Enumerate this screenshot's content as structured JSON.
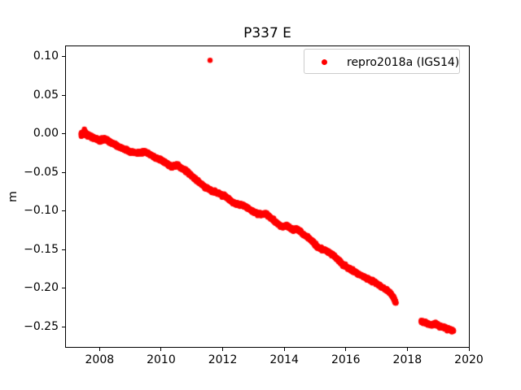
{
  "title": "P337 E",
  "axes": {
    "ylabel": "m"
  },
  "legend": {
    "label": "repro2018a (IGS14)",
    "marker_color": "#ff0000"
  },
  "chart_data": {
    "type": "scatter",
    "title": "P337 E",
    "xlabel": "",
    "ylabel": "m",
    "grid": false,
    "legend_position": "upper right",
    "xlim": [
      2006.88,
      2020.0
    ],
    "ylim": [
      -0.2758,
      0.1147
    ],
    "xticks": {
      "values": [
        2008,
        2010,
        2012,
        2014,
        2016,
        2018,
        2020
      ],
      "labels": [
        "2008",
        "2010",
        "2012",
        "2014",
        "2016",
        "2018",
        "2020"
      ]
    },
    "yticks": {
      "values": [
        0.1,
        0.05,
        0.0,
        -0.05,
        -0.1,
        -0.15,
        -0.2,
        -0.25
      ],
      "labels": [
        "0.10",
        "0.05",
        "0.00",
        "−0.05",
        "−0.10",
        "−0.15",
        "−0.20",
        "−0.25"
      ]
    },
    "series": [
      {
        "name": "repro2018a (IGS14)",
        "color": "#ff0000",
        "marker": "dot",
        "marker_diameter_px": 6.4,
        "sample_step_years": 0.003,
        "scatter_sigma_m": 0.0009,
        "start_boost_until": 2007.66,
        "start_boost": 1.9,
        "segments": [
          {
            "anchors": [
              [
                2007.4,
                0.0
              ],
              [
                2007.5,
                0.002
              ],
              [
                2007.62,
                -0.001
              ],
              [
                2007.75,
                -0.004
              ],
              [
                2008.0,
                -0.008
              ],
              [
                2008.17,
                -0.006
              ],
              [
                2008.4,
                -0.012
              ],
              [
                2008.7,
                -0.018
              ],
              [
                2009.0,
                -0.023
              ],
              [
                2009.28,
                -0.0245
              ],
              [
                2009.45,
                -0.0225
              ],
              [
                2009.8,
                -0.03
              ],
              [
                2010.1,
                -0.036
              ],
              [
                2010.35,
                -0.043
              ],
              [
                2010.5,
                -0.04
              ],
              [
                2010.85,
                -0.049
              ],
              [
                2011.1,
                -0.058
              ],
              [
                2011.4,
                -0.068
              ],
              [
                2011.65,
                -0.0735
              ],
              [
                2011.9,
                -0.077
              ],
              [
                2012.2,
                -0.084
              ],
              [
                2012.35,
                -0.0895
              ],
              [
                2012.6,
                -0.0915
              ],
              [
                2012.75,
                -0.094
              ],
              [
                2013.0,
                -0.101
              ],
              [
                2013.25,
                -0.1045
              ],
              [
                2013.4,
                -0.103
              ],
              [
                2013.55,
                -0.108
              ],
              [
                2013.75,
                -0.115
              ],
              [
                2013.92,
                -0.12
              ],
              [
                2014.08,
                -0.119
              ],
              [
                2014.3,
                -0.1245
              ],
              [
                2014.45,
                -0.1235
              ],
              [
                2014.62,
                -0.13
              ],
              [
                2014.85,
                -0.1365
              ],
              [
                2015.1,
                -0.147
              ],
              [
                2015.35,
                -0.151
              ],
              [
                2015.6,
                -0.157
              ],
              [
                2015.9,
                -0.169
              ],
              [
                2016.15,
                -0.1755
              ],
              [
                2016.4,
                -0.181
              ],
              [
                2016.7,
                -0.1875
              ],
              [
                2016.95,
                -0.192
              ],
              [
                2017.2,
                -0.199
              ],
              [
                2017.45,
                -0.2055
              ],
              [
                2017.55,
                -0.212
              ],
              [
                2017.63,
                -0.2185
              ]
            ]
          },
          {
            "anchors": [
              [
                2018.45,
                -0.2425
              ],
              [
                2018.63,
                -0.245
              ],
              [
                2018.76,
                -0.2475
              ],
              [
                2018.92,
                -0.246
              ],
              [
                2019.08,
                -0.249
              ],
              [
                2019.29,
                -0.252
              ],
              [
                2019.5,
                -0.255
              ]
            ]
          }
        ],
        "outlier_points": [
          [
            2011.59,
            0.0955
          ]
        ]
      }
    ]
  }
}
